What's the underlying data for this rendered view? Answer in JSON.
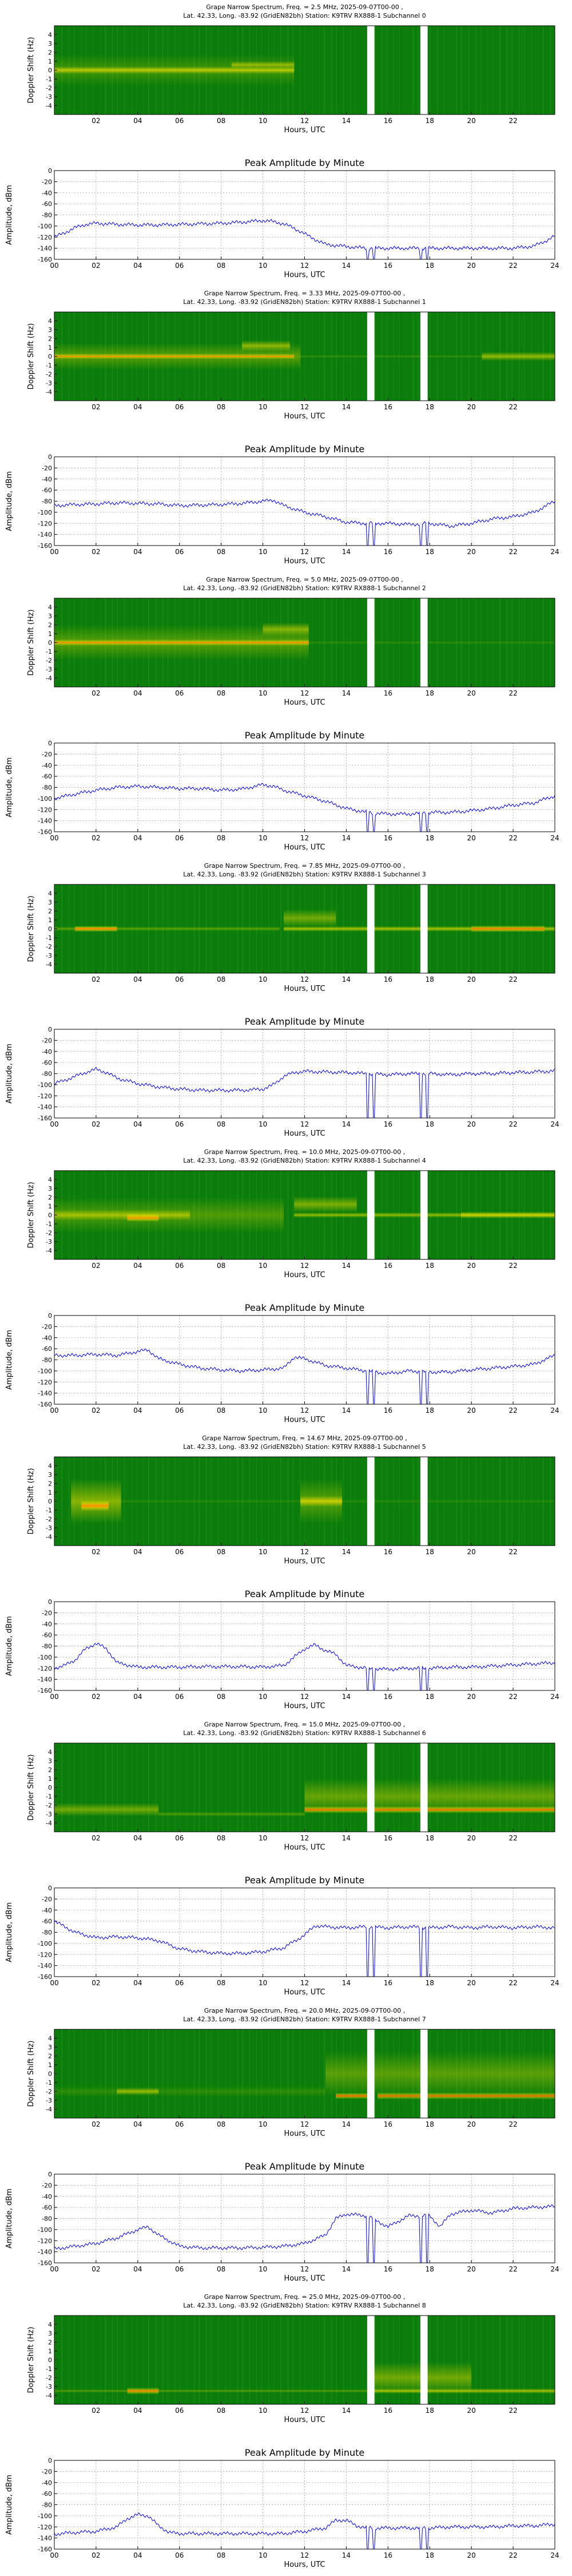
{
  "figure_title": "",
  "shared": {
    "spec_ylabel": "Doppler Shift (Hz)",
    "amp_ylabel": "Amplitude, dBm",
    "xlabel": "Hours, UTC",
    "amp_title": "Peak Amplitude by Minute",
    "spec_yticks": [
      4,
      3,
      2,
      1,
      0,
      -1,
      -2,
      -3,
      -4
    ],
    "spec_yrange": [
      -5,
      5
    ],
    "spec_xticks": [
      "02",
      "04",
      "06",
      "08",
      "10",
      "12",
      "14",
      "16",
      "18",
      "20",
      "22"
    ],
    "amp_yticks": [
      0,
      -20,
      -40,
      -60,
      -80,
      -100,
      -120,
      -140,
      -160
    ],
    "amp_yrange": [
      -160,
      0
    ],
    "amp_xticks": [
      "00",
      "02",
      "04",
      "06",
      "08",
      "10",
      "12",
      "14",
      "16",
      "18",
      "20",
      "22",
      "24"
    ],
    "gaps_hours": [
      [
        15.0,
        15.35
      ],
      [
        17.55,
        17.9
      ]
    ],
    "colors": {
      "line": "#0000ff",
      "spec_bg": "#0a7d0a",
      "spec_hot": "#ff2000",
      "spec_warm": "#f0e000"
    }
  },
  "chart_data": [
    {
      "type": "heatmap",
      "title1": "Grape Narrow Spectrum, Freq. = 2.5 MHz, 2025-09-07T00-00 ,",
      "title2": "Lat.  42.33, Long. -83.92 (GridEN82bh) Station: K9TRV RX888-1 Subchannel 0",
      "ylabel": "Doppler Shift (Hz)",
      "xlabel": "Hours, UTC",
      "bands": [
        {
          "x0": 0.0,
          "x1": 11.5,
          "y": 0.0,
          "w": 0.8,
          "i": 0.7
        },
        {
          "x0": 8.5,
          "x1": 11.5,
          "y": 0.6,
          "w": 0.8,
          "i": 0.55
        },
        {
          "x0": 0.0,
          "x1": 11.5,
          "y": 0.0,
          "w": 3.5,
          "i": 0.25
        }
      ]
    },
    {
      "type": "line",
      "title": "Peak Amplitude by Minute",
      "ylabel": "Amplitude, dBm",
      "xlabel": "Hours, UTC",
      "xlim": [
        0,
        24
      ],
      "ylim": [
        -160,
        0
      ],
      "x": [
        0,
        0.5,
        1,
        1.5,
        2,
        3,
        4,
        5,
        6,
        7,
        8,
        9,
        10,
        10.5,
        11,
        11.5,
        12,
        12.5,
        13,
        14,
        15,
        16,
        17,
        18,
        19,
        20,
        21,
        22,
        23,
        23.5,
        24
      ],
      "y": [
        -120,
        -112,
        -103,
        -97,
        -95,
        -97,
        -98,
        -98,
        -97,
        -96,
        -95,
        -93,
        -90,
        -92,
        -96,
        -104,
        -114,
        -124,
        -133,
        -137,
        -140,
        -140,
        -140,
        -140,
        -140,
        -140,
        -140,
        -140,
        -136,
        -128,
        -118
      ]
    },
    {
      "type": "heatmap",
      "title1": "Grape Narrow Spectrum, Freq. = 3.33 MHz, 2025-09-07T00-00 ,",
      "title2": "Lat.  42.33, Long. -83.92 (GridEN82bh) Station: K9TRV RX888-1 Subchannel 1",
      "ylabel": "Doppler Shift (Hz)",
      "xlabel": "Hours, UTC",
      "bands": [
        {
          "x0": 0.0,
          "x1": 11.5,
          "y": 0.0,
          "w": 0.6,
          "i": 0.85
        },
        {
          "x0": 9.0,
          "x1": 11.3,
          "y": 1.2,
          "w": 1.2,
          "i": 0.55
        },
        {
          "x0": 0.0,
          "x1": 11.8,
          "y": 0.0,
          "w": 3.0,
          "i": 0.35
        },
        {
          "x0": 20.5,
          "x1": 24,
          "y": 0.0,
          "w": 1.0,
          "i": 0.6
        },
        {
          "x0": 11.8,
          "x1": 20.5,
          "y": 0.0,
          "w": 0.3,
          "i": 0.2
        }
      ]
    },
    {
      "type": "line",
      "title": "Peak Amplitude by Minute",
      "ylabel": "Amplitude, dBm",
      "xlabel": "Hours, UTC",
      "xlim": [
        0,
        24
      ],
      "ylim": [
        -160,
        0
      ],
      "x": [
        0,
        1,
        2,
        3,
        4,
        5,
        6,
        7,
        8,
        9,
        10,
        10.5,
        11,
        12,
        13,
        14,
        15,
        16,
        17,
        18,
        19,
        20,
        21,
        22,
        23,
        24
      ],
      "y": [
        -88,
        -86,
        -85,
        -83,
        -84,
        -85,
        -88,
        -87,
        -86,
        -84,
        -80,
        -78,
        -88,
        -100,
        -108,
        -118,
        -120,
        -120,
        -122,
        -120,
        -125,
        -120,
        -112,
        -108,
        -100,
        -80
      ]
    },
    {
      "type": "heatmap",
      "title1": "Grape Narrow Spectrum, Freq. = 5.0 MHz, 2025-09-07T00-00 ,",
      "title2": "Lat.  42.33, Long. -83.92 (GridEN82bh) Station: K9TRV RX888-1 Subchannel 2",
      "ylabel": "Doppler Shift (Hz)",
      "xlabel": "Hours, UTC",
      "bands": [
        {
          "x0": 0.0,
          "x1": 12.2,
          "y": 0.0,
          "w": 0.7,
          "i": 0.85
        },
        {
          "x0": 0.0,
          "x1": 12.2,
          "y": 0.0,
          "w": 4.0,
          "i": 0.35
        },
        {
          "x0": 10.0,
          "x1": 12.2,
          "y": 1.5,
          "w": 1.5,
          "i": 0.5
        },
        {
          "x0": 12.2,
          "x1": 24,
          "y": 0.0,
          "w": 0.4,
          "i": 0.15
        }
      ]
    },
    {
      "type": "line",
      "title": "Peak Amplitude by Minute",
      "ylabel": "Amplitude, dBm",
      "xlabel": "Hours, UTC",
      "xlim": [
        0,
        24
      ],
      "ylim": [
        -160,
        0
      ],
      "x": [
        0,
        1,
        2,
        3,
        4,
        5,
        6,
        7,
        8,
        9,
        10,
        10.5,
        11,
        12,
        13,
        14,
        15,
        16,
        17,
        18,
        19,
        20,
        21,
        22,
        23,
        24
      ],
      "y": [
        -100,
        -92,
        -85,
        -80,
        -78,
        -80,
        -82,
        -82,
        -85,
        -83,
        -75,
        -78,
        -85,
        -95,
        -105,
        -118,
        -125,
        -128,
        -128,
        -125,
        -125,
        -122,
        -118,
        -112,
        -108,
        -95
      ]
    },
    {
      "type": "heatmap",
      "title1": "Grape Narrow Spectrum, Freq. = 7.85 MHz, 2025-09-07T00-00 ,",
      "title2": "Lat.  42.33, Long. -83.92 (GridEN82bh) Station: K9TRV RX888-1 Subchannel 3",
      "ylabel": "Doppler Shift (Hz)",
      "xlabel": "Hours, UTC",
      "bands": [
        {
          "x0": 1.0,
          "x1": 3.0,
          "y": 0.0,
          "w": 0.7,
          "i": 0.95
        },
        {
          "x0": 0.0,
          "x1": 10.8,
          "y": 0.0,
          "w": 0.5,
          "i": 0.35
        },
        {
          "x0": 11.0,
          "x1": 24,
          "y": 0.0,
          "w": 0.6,
          "i": 0.7
        },
        {
          "x0": 11.0,
          "x1": 13.5,
          "y": 1.2,
          "w": 2.0,
          "i": 0.45
        },
        {
          "x0": 20.0,
          "x1": 23.5,
          "y": 0.0,
          "w": 0.8,
          "i": 0.75
        }
      ]
    },
    {
      "type": "line",
      "title": "Peak Amplitude by Minute",
      "ylabel": "Amplitude, dBm",
      "xlabel": "Hours, UTC",
      "xlim": [
        0,
        24
      ],
      "ylim": [
        -160,
        0
      ],
      "x": [
        0,
        0.5,
        1,
        1.5,
        2,
        2.5,
        3,
        4,
        5,
        6,
        7,
        8,
        9,
        10,
        10.5,
        11,
        11.5,
        12,
        13,
        14,
        15,
        16,
        17,
        18,
        19,
        20,
        21,
        22,
        23,
        24
      ],
      "y": [
        -98,
        -92,
        -85,
        -78,
        -72,
        -78,
        -88,
        -98,
        -104,
        -108,
        -110,
        -110,
        -110,
        -108,
        -100,
        -85,
        -78,
        -76,
        -77,
        -78,
        -80,
        -82,
        -80,
        -80,
        -82,
        -80,
        -80,
        -78,
        -77,
        -75
      ]
    },
    {
      "type": "heatmap",
      "title1": "Grape Narrow Spectrum, Freq. = 10.0 MHz, 2025-09-07T00-00 ,",
      "title2": "Lat.  42.33, Long. -83.92 (GridEN82bh) Station: K9TRV RX888-1 Subchannel 4",
      "ylabel": "Doppler Shift (Hz)",
      "xlabel": "Hours, UTC",
      "bands": [
        {
          "x0": 3.5,
          "x1": 5.0,
          "y": -0.3,
          "w": 0.9,
          "i": 0.95
        },
        {
          "x0": 0.0,
          "x1": 6.5,
          "y": 0.0,
          "w": 1.2,
          "i": 0.55
        },
        {
          "x0": 0.0,
          "x1": 11.0,
          "y": 0.0,
          "w": 4.0,
          "i": 0.3
        },
        {
          "x0": 11.5,
          "x1": 24,
          "y": 0.0,
          "w": 0.6,
          "i": 0.6
        },
        {
          "x0": 11.5,
          "x1": 14.5,
          "y": 1.2,
          "w": 1.8,
          "i": 0.5
        },
        {
          "x0": 19.5,
          "x1": 24,
          "y": 0.0,
          "w": 0.8,
          "i": 0.6
        }
      ]
    },
    {
      "type": "line",
      "title": "Peak Amplitude by Minute",
      "ylabel": "Amplitude, dBm",
      "xlabel": "Hours, UTC",
      "xlim": [
        0,
        24
      ],
      "ylim": [
        -160,
        0
      ],
      "x": [
        0,
        1,
        2,
        3,
        4,
        4.5,
        5,
        6,
        7,
        8,
        9,
        10,
        11,
        11.5,
        12,
        13,
        14,
        15,
        16,
        17,
        18,
        19,
        20,
        21,
        22,
        23,
        24
      ],
      "y": [
        -72,
        -72,
        -70,
        -72,
        -65,
        -62,
        -78,
        -88,
        -95,
        -98,
        -100,
        -98,
        -95,
        -75,
        -78,
        -90,
        -95,
        -100,
        -105,
        -100,
        -102,
        -102,
        -98,
        -95,
        -92,
        -88,
        -72
      ]
    },
    {
      "type": "heatmap",
      "title1": "Grape Narrow Spectrum, Freq. = 14.67 MHz, 2025-09-07T00-00 ,",
      "title2": "Lat.  42.33, Long. -83.92 (GridEN82bh) Station: K9TRV RX888-1 Subchannel 5",
      "ylabel": "Doppler Shift (Hz)",
      "xlabel": "Hours, UTC",
      "bands": [
        {
          "x0": 1.3,
          "x1": 2.6,
          "y": -0.5,
          "w": 1.2,
          "i": 1.0
        },
        {
          "x0": 0.8,
          "x1": 3.2,
          "y": 0.0,
          "w": 5.0,
          "i": 0.55
        },
        {
          "x0": 11.8,
          "x1": 13.8,
          "y": 0.0,
          "w": 1.2,
          "i": 0.7
        },
        {
          "x0": 11.8,
          "x1": 13.8,
          "y": 0.0,
          "w": 5.0,
          "i": 0.35
        },
        {
          "x0": 3.2,
          "x1": 24,
          "y": 0.0,
          "w": 0.4,
          "i": 0.12
        }
      ]
    },
    {
      "type": "line",
      "title": "Peak Amplitude by Minute",
      "ylabel": "Amplitude, dBm",
      "xlabel": "Hours, UTC",
      "xlim": [
        0,
        24
      ],
      "ylim": [
        -160,
        0
      ],
      "x": [
        0,
        0.5,
        1,
        1.5,
        2,
        2.5,
        3,
        4,
        5,
        6,
        7,
        8,
        9,
        10,
        11,
        12,
        12.5,
        13,
        13.5,
        14,
        15,
        16,
        17,
        18,
        19,
        20,
        21,
        22,
        23,
        24
      ],
      "y": [
        -120,
        -115,
        -105,
        -85,
        -75,
        -85,
        -110,
        -118,
        -118,
        -118,
        -117,
        -117,
        -117,
        -118,
        -115,
        -85,
        -78,
        -88,
        -95,
        -115,
        -120,
        -122,
        -120,
        -120,
        -118,
        -118,
        -116,
        -114,
        -112,
        -110
      ]
    },
    {
      "type": "heatmap",
      "title1": "Grape Narrow Spectrum, Freq. = 15.0 MHz, 2025-09-07T00-00 ,",
      "title2": "Lat.  42.33, Long. -83.92 (GridEN82bh) Station: K9TRV RX888-1 Subchannel 6",
      "ylabel": "Doppler Shift (Hz)",
      "xlabel": "Hours, UTC",
      "bands": [
        {
          "x0": 0.0,
          "x1": 5.0,
          "y": -2.5,
          "w": 1.5,
          "i": 0.45
        },
        {
          "x0": 5.0,
          "x1": 12.0,
          "y": -3.0,
          "w": 0.5,
          "i": 0.3
        },
        {
          "x0": 12.0,
          "x1": 24,
          "y": -2.5,
          "w": 0.8,
          "i": 0.85
        },
        {
          "x0": 12.0,
          "x1": 24,
          "y": -1.0,
          "w": 4.0,
          "i": 0.4
        }
      ]
    },
    {
      "type": "line",
      "title": "Peak Amplitude by Minute",
      "ylabel": "Amplitude, dBm",
      "xlabel": "Hours, UTC",
      "xlim": [
        0,
        24
      ],
      "ylim": [
        -160,
        0
      ],
      "x": [
        0,
        0.5,
        1,
        2,
        3,
        4,
        5,
        6,
        7,
        8,
        9,
        10,
        11,
        12,
        12.5,
        13,
        14,
        15,
        16,
        17,
        18,
        19,
        20,
        21,
        22,
        23,
        24
      ],
      "y": [
        -60,
        -70,
        -80,
        -90,
        -88,
        -90,
        -95,
        -110,
        -115,
        -118,
        -118,
        -115,
        -108,
        -85,
        -68,
        -70,
        -72,
        -70,
        -72,
        -70,
        -72,
        -70,
        -72,
        -70,
        -72,
        -70,
        -72
      ]
    },
    {
      "type": "heatmap",
      "title1": "Grape Narrow Spectrum, Freq. = 20.0 MHz, 2025-09-07T00-00 ,",
      "title2": "Lat.  42.33, Long. -83.92 (GridEN82bh) Station: K9TRV RX888-1 Subchannel 7",
      "ylabel": "Doppler Shift (Hz)",
      "xlabel": "Hours, UTC",
      "bands": [
        {
          "x0": 3.0,
          "x1": 5.0,
          "y": -2.0,
          "w": 0.8,
          "i": 0.55
        },
        {
          "x0": 13.5,
          "x1": 15.0,
          "y": -2.5,
          "w": 0.7,
          "i": 0.9
        },
        {
          "x0": 15.5,
          "x1": 24,
          "y": -2.5,
          "w": 0.8,
          "i": 0.8
        },
        {
          "x0": 13.0,
          "x1": 24,
          "y": 0.0,
          "w": 5.0,
          "i": 0.35
        },
        {
          "x0": 0.0,
          "x1": 13.0,
          "y": -2.0,
          "w": 1.2,
          "i": 0.15
        }
      ]
    },
    {
      "type": "line",
      "title": "Peak Amplitude by Minute",
      "ylabel": "Amplitude, dBm",
      "xlabel": "Hours, UTC",
      "xlim": [
        0,
        24
      ],
      "ylim": [
        -160,
        0
      ],
      "x": [
        0,
        1,
        2,
        3,
        4,
        4.5,
        5,
        6,
        7,
        8,
        9,
        10,
        11,
        12,
        13,
        13.5,
        14,
        15,
        16,
        17,
        18,
        18.5,
        19,
        20,
        21,
        22,
        23,
        24
      ],
      "y": [
        -135,
        -130,
        -125,
        -115,
        -100,
        -95,
        -110,
        -130,
        -133,
        -133,
        -133,
        -132,
        -130,
        -125,
        -110,
        -80,
        -72,
        -75,
        -95,
        -75,
        -75,
        -95,
        -72,
        -65,
        -70,
        -62,
        -60,
        -58
      ]
    },
    {
      "type": "heatmap",
      "title1": "Grape Narrow Spectrum, Freq. = 25.0 MHz, 2025-09-07T00-00 ,",
      "title2": "Lat.  42.33, Long. -83.92 (GridEN82bh) Station: K9TRV RX888-1 Subchannel 8",
      "ylabel": "Doppler Shift (Hz)",
      "xlabel": "Hours, UTC",
      "bands": [
        {
          "x0": 3.5,
          "x1": 5.0,
          "y": -3.5,
          "w": 0.8,
          "i": 0.8
        },
        {
          "x0": 0.0,
          "x1": 24,
          "y": -3.5,
          "w": 0.4,
          "i": 0.3
        },
        {
          "x0": 15.0,
          "x1": 20.0,
          "y": -2.0,
          "w": 3.5,
          "i": 0.45
        },
        {
          "x0": 15.0,
          "x1": 24,
          "y": -3.5,
          "w": 0.6,
          "i": 0.5
        }
      ]
    },
    {
      "type": "line",
      "title": "Peak Amplitude by Minute",
      "ylabel": "Amplitude, dBm",
      "xlabel": "Hours, UTC",
      "xlim": [
        0,
        24
      ],
      "ylim": [
        -160,
        0
      ],
      "x": [
        0,
        1,
        2,
        3,
        3.5,
        4,
        4.5,
        5,
        5.5,
        6,
        7,
        8,
        9,
        10,
        11,
        12,
        13,
        13.5,
        14,
        14.5,
        15,
        16,
        17,
        18,
        19,
        20,
        21,
        22,
        23,
        24
      ],
      "y": [
        -133,
        -130,
        -128,
        -120,
        -105,
        -98,
        -100,
        -118,
        -130,
        -132,
        -132,
        -132,
        -132,
        -132,
        -132,
        -128,
        -122,
        -108,
        -108,
        -118,
        -122,
        -122,
        -122,
        -122,
        -120,
        -120,
        -120,
        -118,
        -118,
        -115
      ]
    }
  ]
}
